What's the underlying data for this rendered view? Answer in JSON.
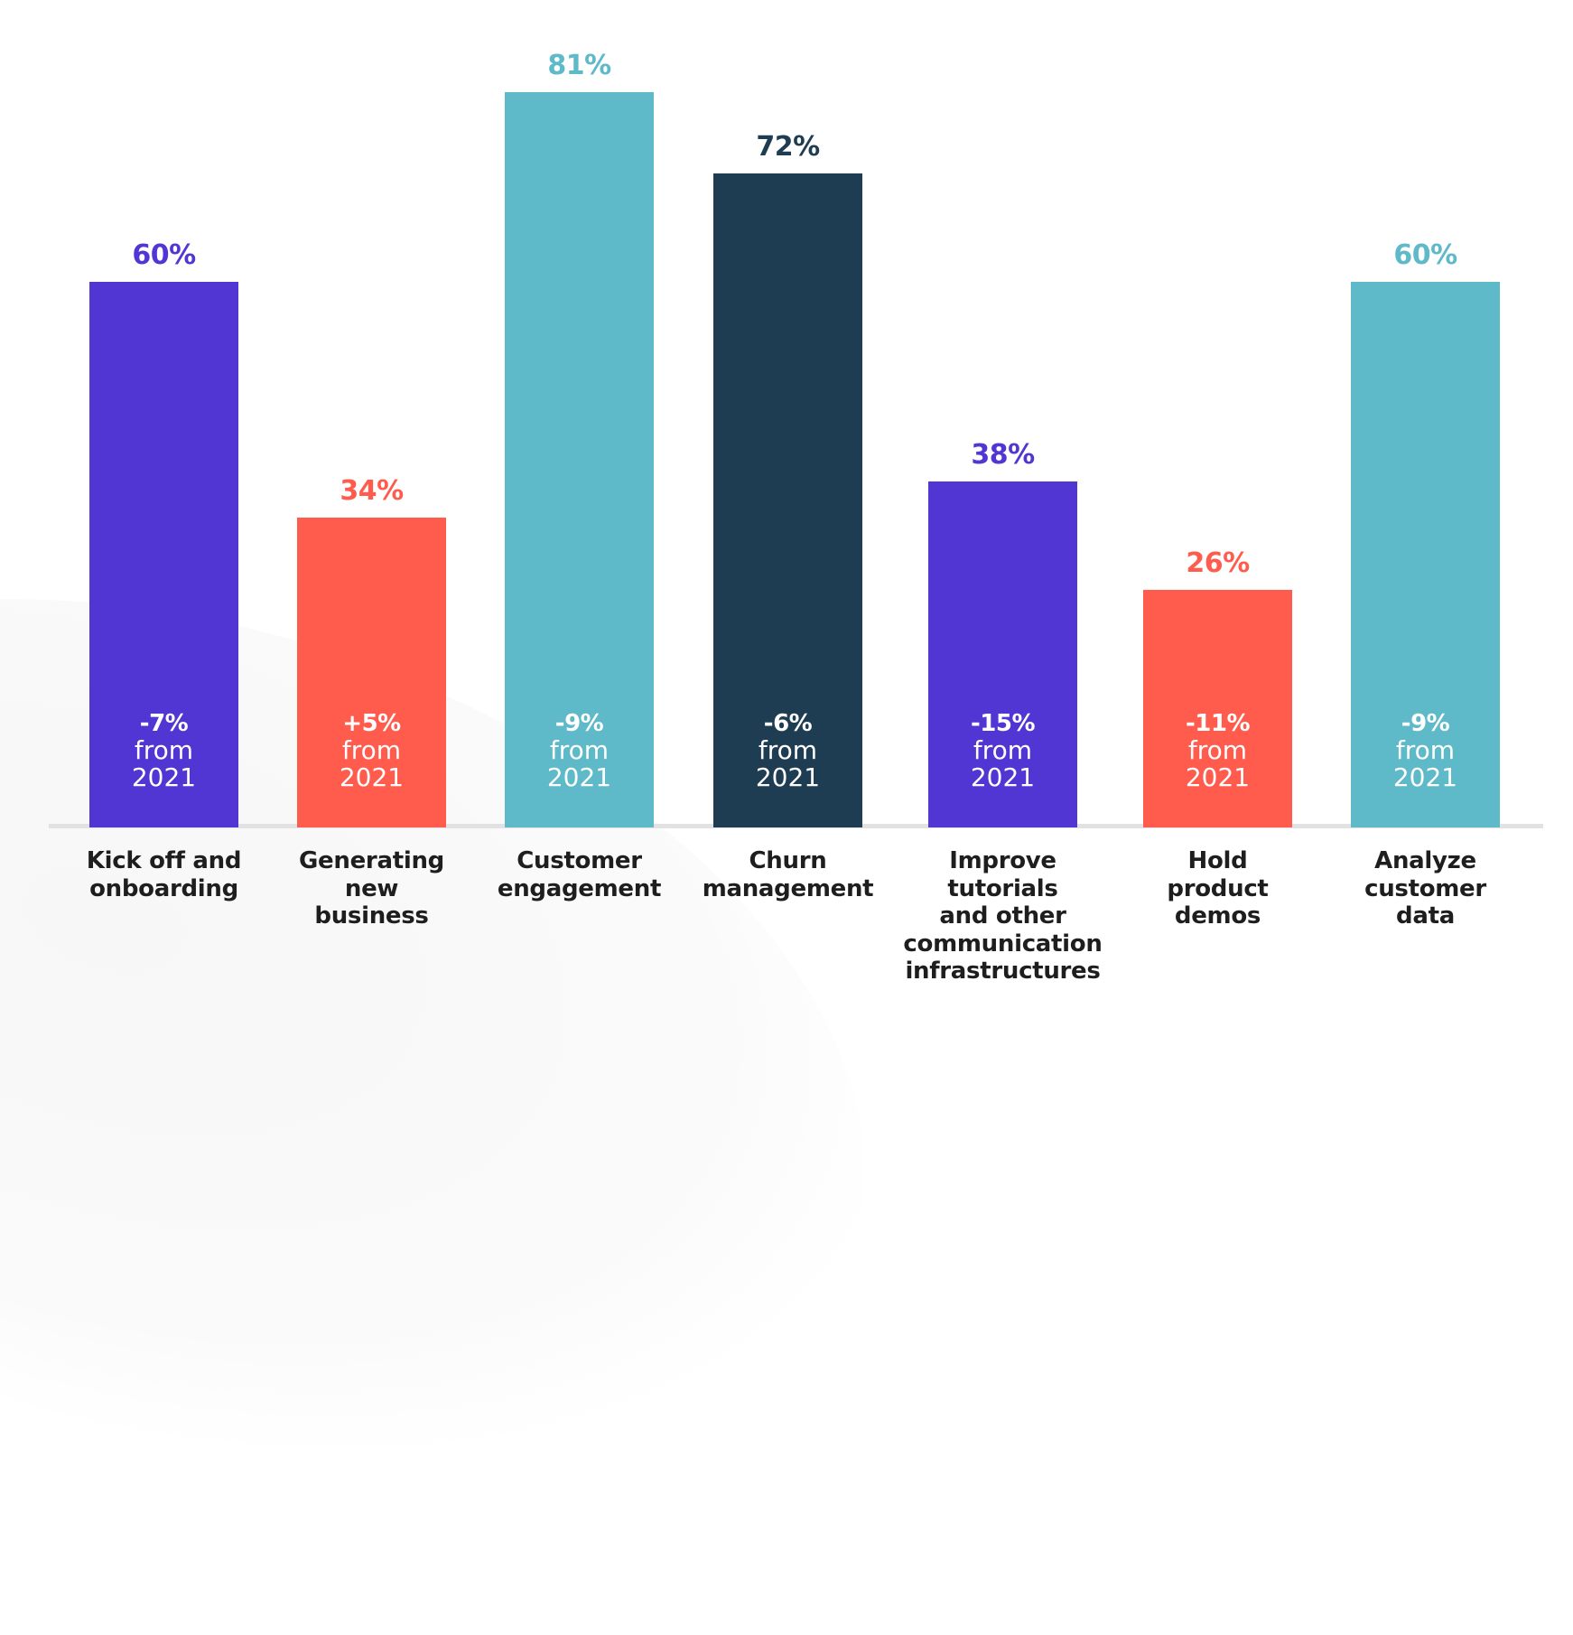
{
  "chart_data": {
    "type": "bar",
    "title": "",
    "xlabel": "",
    "ylabel": "",
    "ylim": [
      0,
      90
    ],
    "grid": false,
    "legend": null,
    "categories": [
      "Kick off and onboarding",
      "Generating new business",
      "Customer engagement",
      "Churn management",
      "Improve tutorials and other communication infrastructures",
      "Hold product demos",
      "Analyze customer data"
    ],
    "values": [
      60,
      34,
      81,
      72,
      38,
      26,
      60
    ],
    "change_from_2021": [
      -7,
      5,
      -9,
      -6,
      -15,
      -11,
      -9
    ],
    "annotations": [
      "-7% from 2021",
      "+5% from 2021",
      "-9% from 2021",
      "-6% from 2021",
      "-15% from 2021",
      "-11% from 2021",
      "-9% from 2021"
    ],
    "bar_colors": [
      "#5136d4",
      "#ff5c4d",
      "#5eb9c8",
      "#1f3d52",
      "#5136d4",
      "#ff5c4d",
      "#5eb9c8"
    ]
  },
  "bars": [
    {
      "value_label": "60%",
      "delta": "-7%",
      "from": "from",
      "year": "2021",
      "label_lines": [
        "Kick off and",
        "onboarding"
      ],
      "color": "#5136d4",
      "value": 60
    },
    {
      "value_label": "34%",
      "delta": "+5%",
      "from": "from",
      "year": "2021",
      "label_lines": [
        "Generating",
        "new",
        "business"
      ],
      "color": "#ff5c4d",
      "value": 34
    },
    {
      "value_label": "81%",
      "delta": "-9%",
      "from": "from",
      "year": "2021",
      "label_lines": [
        "Customer",
        "engagement"
      ],
      "color": "#5eb9c8",
      "value": 81
    },
    {
      "value_label": "72%",
      "delta": "-6%",
      "from": "from",
      "year": "2021",
      "label_lines": [
        "Churn",
        "management"
      ],
      "color": "#1f3d52",
      "value": 72
    },
    {
      "value_label": "38%",
      "delta": "-15%",
      "from": "from",
      "year": "2021",
      "label_lines": [
        "Improve",
        "tutorials",
        "and other",
        "communication",
        "infrastructures"
      ],
      "color": "#5136d4",
      "value": 38
    },
    {
      "value_label": "26%",
      "delta": "-11%",
      "from": "from",
      "year": "2021",
      "label_lines": [
        "Hold",
        "product",
        "demos"
      ],
      "color": "#ff5c4d",
      "value": 26
    },
    {
      "value_label": "60%",
      "delta": "-9%",
      "from": "from",
      "year": "2021",
      "label_lines": [
        "Analyze",
        "customer",
        "data"
      ],
      "color": "#5eb9c8",
      "value": 60
    }
  ],
  "colors": {
    "purple": "#5136d4",
    "coral": "#ff5c4d",
    "teal": "#5eb9c8",
    "navy": "#1f3d52",
    "axis": "#e2e2e4",
    "label_text": "#1e1e1e"
  }
}
